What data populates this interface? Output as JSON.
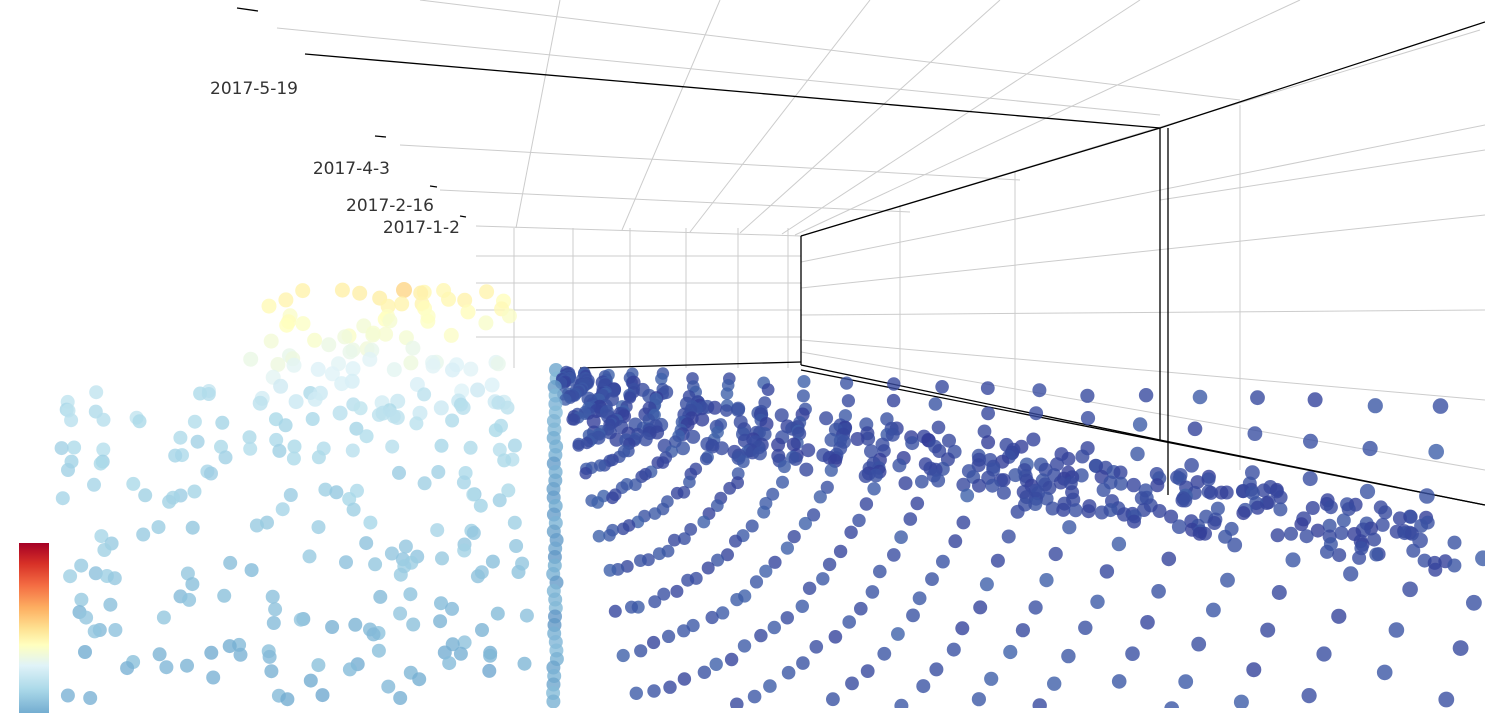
{
  "chart_data": {
    "type": "scatter",
    "z_ticks": [
      "2017-1-2",
      "2017-2-16",
      "2017-4-3",
      "2017-5-19"
    ],
    "colors": {
      "scale": [
        "#313695",
        "#4575b4",
        "#74add1",
        "#abd9e9",
        "#e0f3f8",
        "#ffffbf",
        "#fee090",
        "#fdae61",
        "#f46d43",
        "#d73027",
        "#a50026"
      ],
      "axis_line": "#000000",
      "grid": "#cccccc"
    },
    "grid": true,
    "visual_map": {
      "placement": "bottom-left"
    }
  }
}
